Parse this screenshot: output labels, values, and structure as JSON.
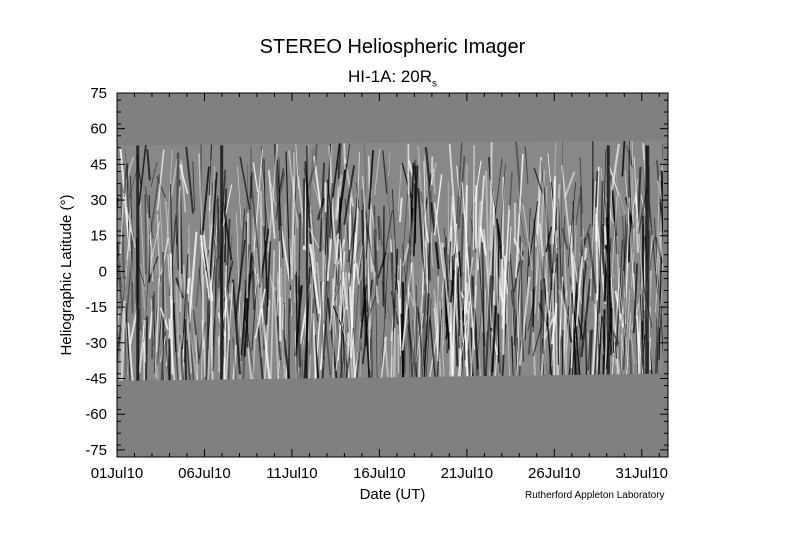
{
  "chart_data": {
    "type": "heatmap",
    "title": "STEREO Heliospheric Imager",
    "subtitle_main": "HI-1A: 20R",
    "subtitle_sub": "s",
    "xlabel": "Date (UT)",
    "ylabel": "Heliographic Latitude (°)",
    "x_ticks": [
      "01Jul10",
      "06Jul10",
      "11Jul10",
      "16Jul10",
      "21Jul10",
      "26Jul10",
      "31Jul10"
    ],
    "x_range_days": [
      0,
      31.5
    ],
    "y_ticks": [
      75,
      60,
      45,
      30,
      15,
      0,
      -15,
      -30,
      -45,
      -60,
      -75
    ],
    "ylim": [
      -78,
      75
    ],
    "data_coverage_latitude": {
      "start": [
        53,
        -46
      ],
      "end": [
        55,
        -43
      ]
    },
    "colors": {
      "fill": "#808080",
      "dark": "#000000",
      "bright": "#ffffff"
    }
  },
  "credit": "Rutherford Appleton Laboratory"
}
